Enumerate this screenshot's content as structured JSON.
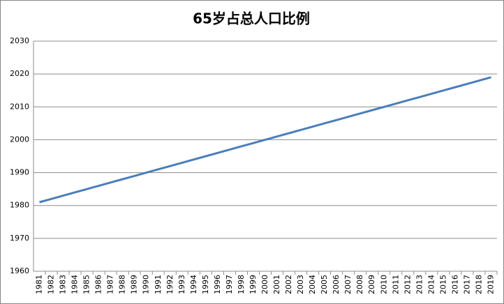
{
  "chart_data": {
    "type": "line",
    "title": "65岁占总人口比例",
    "categories": [
      "1981",
      "1982",
      "1983",
      "1984",
      "1985",
      "1986",
      "1987",
      "1988",
      "1989",
      "1990",
      "1991",
      "1992",
      "1993",
      "1994",
      "1995",
      "1996",
      "1997",
      "1998",
      "1999",
      "2000",
      "2001",
      "2002",
      "2003",
      "2004",
      "2005",
      "2006",
      "2007",
      "2008",
      "2009",
      "2010",
      "2011",
      "2012",
      "2013",
      "2014",
      "2015",
      "2016",
      "2017",
      "2018",
      "2019"
    ],
    "series": [
      {
        "name": "65岁占总人口比例",
        "color": "#4a7ebb",
        "values": [
          1981,
          1982,
          1983,
          1984,
          1985,
          1986,
          1987,
          1988,
          1989,
          1990,
          1991,
          1992,
          1993,
          1994,
          1995,
          1996,
          1997,
          1998,
          1999,
          2000,
          2001,
          2002,
          2003,
          2004,
          2005,
          2006,
          2007,
          2008,
          2009,
          2010,
          2011,
          2012,
          2013,
          2014,
          2015,
          2016,
          2017,
          2018,
          2019
        ]
      }
    ],
    "ylim": [
      1960,
      2030
    ],
    "yticks": [
      1960,
      1970,
      1980,
      1990,
      2000,
      2010,
      2020,
      2030
    ],
    "grid": true
  }
}
